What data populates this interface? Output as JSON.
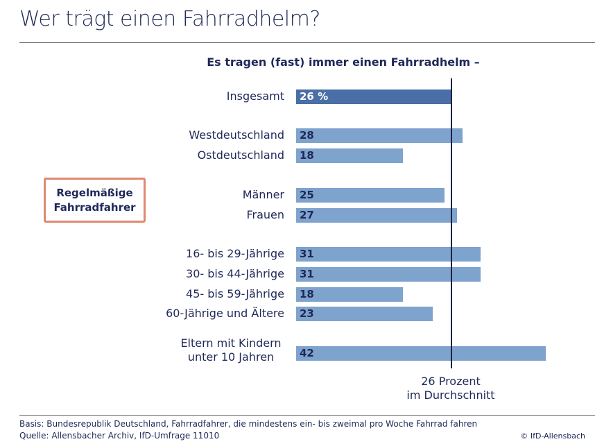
{
  "title": "Wer trägt einen Fahrradhelm?",
  "highlight_box": "Regelmäßige Fahrradfahrer",
  "chart_data": {
    "type": "bar",
    "orientation": "horizontal",
    "title": "Es tragen (fast) immer einen Fahrradhelm –",
    "unit": "%",
    "categories": [
      "Insgesamt",
      "Westdeutschland",
      "Ostdeutschland",
      "Männer",
      "Frauen",
      "16- bis 29-Jährige",
      "30- bis 44-Jährige",
      "45- bis 59-Jährige",
      "60-Jährige und Ältere",
      "Eltern mit Kindern unter 10 Jahren"
    ],
    "values": [
      26,
      28,
      18,
      25,
      27,
      31,
      31,
      18,
      23,
      42
    ],
    "value_labels": [
      "26 %",
      "28",
      "18",
      "25",
      "27",
      "31",
      "31",
      "18",
      "23",
      "42"
    ],
    "reference_line": {
      "value": 26,
      "label_line1": "26 Prozent",
      "label_line2": "im Durchschnitt"
    },
    "colors": {
      "total": "#4a6ea6",
      "bars": "#7ea3cd",
      "label_total": "#ffffff",
      "label": "#1f2858",
      "reference": "#1a2148"
    }
  },
  "footer": {
    "basis": "Basis: Bundesrepublik Deutschland, Fahrradfahrer, die mindestens ein- bis zweimal pro Woche Fahrrad fahren",
    "source": "Quelle: Allensbacher Archiv, IfD-Umfrage 11010",
    "copyright": "© IfD-Allensbach"
  }
}
